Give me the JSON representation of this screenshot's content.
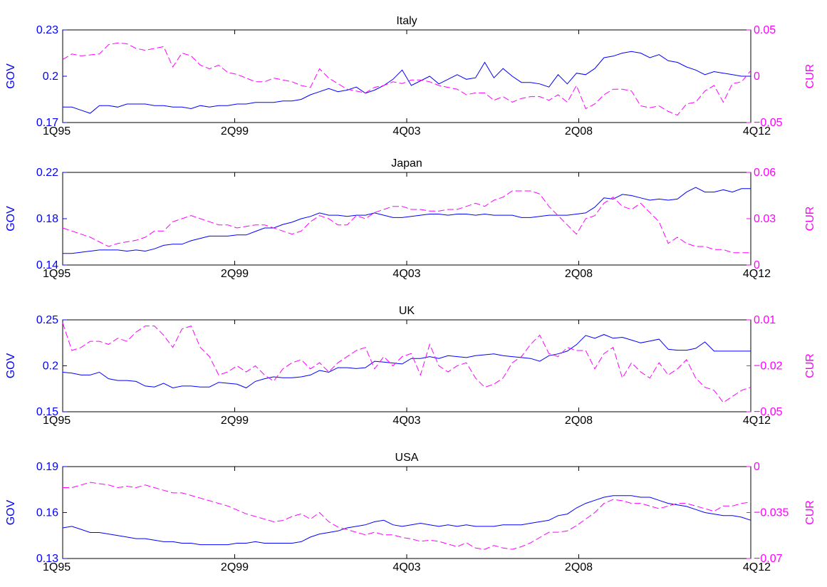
{
  "figure": {
    "x_tick_labels": [
      "1Q95",
      "2Q99",
      "4Q03",
      "2Q08",
      "4Q12"
    ],
    "left_axis_label": "GOV",
    "right_axis_label": "CUR",
    "left_color": "#0000ff",
    "right_color": "#ff00ff"
  },
  "chart_data": [
    {
      "type": "line",
      "title": "Italy",
      "ylabel": "GOV",
      "ylabel_right": "CUR",
      "ylim": [
        0.17,
        0.23
      ],
      "ylim_right": [
        -0.05,
        0.05
      ],
      "yticks": [
        "0.17",
        "0.2",
        "0.23"
      ],
      "yticks_right": [
        "−0.05",
        "0",
        "0.05"
      ],
      "series": [
        {
          "name": "GOV",
          "axis": "left",
          "style": "solid",
          "values": [
            0.18,
            0.18,
            0.178,
            0.176,
            0.181,
            0.181,
            0.18,
            0.182,
            0.182,
            0.182,
            0.181,
            0.181,
            0.18,
            0.18,
            0.179,
            0.181,
            0.18,
            0.181,
            0.181,
            0.182,
            0.182,
            0.183,
            0.183,
            0.183,
            0.184,
            0.184,
            0.185,
            0.188,
            0.19,
            0.192,
            0.19,
            0.191,
            0.193,
            0.189,
            0.191,
            0.194,
            0.198,
            0.204,
            0.194,
            0.197,
            0.2,
            0.195,
            0.198,
            0.201,
            0.198,
            0.199,
            0.209,
            0.199,
            0.205,
            0.2,
            0.196,
            0.196,
            0.195,
            0.193,
            0.201,
            0.195,
            0.202,
            0.201,
            0.205,
            0.212,
            0.213,
            0.215,
            0.216,
            0.215,
            0.212,
            0.214,
            0.21,
            0.209,
            0.206,
            0.204,
            0.201,
            0.203,
            0.202,
            0.201,
            0.2,
            0.2
          ]
        },
        {
          "name": "CUR",
          "axis": "right",
          "style": "dashed",
          "values": [
            0.018,
            0.024,
            0.022,
            0.023,
            0.024,
            0.034,
            0.036,
            0.035,
            0.03,
            0.028,
            0.03,
            0.032,
            0.01,
            0.025,
            0.022,
            0.012,
            0.008,
            0.012,
            0.004,
            0.002,
            -0.002,
            -0.006,
            -0.006,
            -0.002,
            -0.004,
            -0.006,
            -0.01,
            -0.012,
            0.008,
            -0.002,
            -0.008,
            -0.014,
            -0.016,
            -0.018,
            -0.012,
            -0.01,
            -0.006,
            -0.008,
            -0.004,
            -0.004,
            -0.006,
            -0.01,
            -0.012,
            -0.014,
            -0.02,
            -0.018,
            -0.018,
            -0.026,
            -0.022,
            -0.028,
            -0.024,
            -0.022,
            -0.022,
            -0.026,
            -0.02,
            -0.028,
            -0.01,
            -0.035,
            -0.03,
            -0.02,
            -0.014,
            -0.014,
            -0.016,
            -0.032,
            -0.034,
            -0.032,
            -0.038,
            -0.042,
            -0.03,
            -0.028,
            -0.016,
            -0.01,
            -0.028,
            -0.008,
            -0.006,
            0.006
          ]
        }
      ]
    },
    {
      "type": "line",
      "title": "Japan",
      "ylabel": "GOV",
      "ylabel_right": "CUR",
      "ylim": [
        0.14,
        0.22
      ],
      "ylim_right": [
        0,
        0.06
      ],
      "yticks": [
        "0.14",
        "0.18",
        "0.22"
      ],
      "yticks_right": [
        "0",
        "0.03",
        "0.06"
      ],
      "series": [
        {
          "name": "GOV",
          "axis": "left",
          "style": "solid",
          "values": [
            0.15,
            0.15,
            0.151,
            0.152,
            0.153,
            0.153,
            0.153,
            0.152,
            0.153,
            0.152,
            0.154,
            0.157,
            0.158,
            0.158,
            0.161,
            0.163,
            0.165,
            0.165,
            0.165,
            0.166,
            0.166,
            0.169,
            0.172,
            0.172,
            0.175,
            0.177,
            0.18,
            0.182,
            0.185,
            0.183,
            0.183,
            0.182,
            0.183,
            0.183,
            0.185,
            0.183,
            0.181,
            0.181,
            0.182,
            0.183,
            0.184,
            0.184,
            0.183,
            0.184,
            0.184,
            0.183,
            0.184,
            0.183,
            0.183,
            0.183,
            0.181,
            0.181,
            0.182,
            0.183,
            0.183,
            0.183,
            0.184,
            0.185,
            0.19,
            0.198,
            0.197,
            0.201,
            0.2,
            0.198,
            0.196,
            0.197,
            0.196,
            0.197,
            0.203,
            0.207,
            0.203,
            0.203,
            0.205,
            0.203,
            0.206,
            0.206
          ]
        },
        {
          "name": "CUR",
          "axis": "right",
          "style": "dashed",
          "values": [
            0.024,
            0.022,
            0.02,
            0.018,
            0.015,
            0.012,
            0.014,
            0.015,
            0.016,
            0.018,
            0.022,
            0.022,
            0.028,
            0.03,
            0.032,
            0.03,
            0.028,
            0.026,
            0.026,
            0.024,
            0.025,
            0.026,
            0.026,
            0.024,
            0.022,
            0.02,
            0.022,
            0.028,
            0.032,
            0.03,
            0.026,
            0.026,
            0.032,
            0.03,
            0.034,
            0.036,
            0.038,
            0.038,
            0.036,
            0.036,
            0.035,
            0.035,
            0.036,
            0.036,
            0.038,
            0.04,
            0.038,
            0.042,
            0.044,
            0.048,
            0.048,
            0.048,
            0.046,
            0.038,
            0.032,
            0.026,
            0.02,
            0.03,
            0.032,
            0.04,
            0.044,
            0.038,
            0.036,
            0.04,
            0.034,
            0.028,
            0.014,
            0.018,
            0.014,
            0.012,
            0.012,
            0.01,
            0.01,
            0.008,
            0.008,
            0.008
          ]
        }
      ]
    },
    {
      "type": "line",
      "title": "UK",
      "ylabel": "GOV",
      "ylabel_right": "CUR",
      "ylim": [
        0.15,
        0.25
      ],
      "ylim_right": [
        -0.05,
        0.01
      ],
      "yticks": [
        "0.15",
        "0.2",
        "0.25"
      ],
      "yticks_right": [
        "−0.05",
        "−0.02",
        "0.01"
      ],
      "series": [
        {
          "name": "GOV",
          "axis": "left",
          "style": "solid",
          "values": [
            0.193,
            0.192,
            0.19,
            0.19,
            0.193,
            0.186,
            0.184,
            0.184,
            0.183,
            0.178,
            0.177,
            0.181,
            0.176,
            0.178,
            0.178,
            0.177,
            0.177,
            0.182,
            0.181,
            0.18,
            0.176,
            0.183,
            0.186,
            0.188,
            0.187,
            0.187,
            0.188,
            0.19,
            0.195,
            0.193,
            0.198,
            0.198,
            0.197,
            0.198,
            0.205,
            0.204,
            0.203,
            0.202,
            0.208,
            0.208,
            0.21,
            0.208,
            0.211,
            0.21,
            0.209,
            0.211,
            0.212,
            0.213,
            0.211,
            0.21,
            0.209,
            0.208,
            0.205,
            0.211,
            0.213,
            0.216,
            0.223,
            0.233,
            0.23,
            0.234,
            0.23,
            0.231,
            0.228,
            0.225,
            0.227,
            0.229,
            0.218,
            0.217,
            0.217,
            0.219,
            0.226,
            0.216,
            0.216,
            0.216,
            0.216,
            0.216
          ]
        },
        {
          "name": "CUR",
          "axis": "right",
          "style": "dashed",
          "values": [
            0.008,
            -0.01,
            -0.008,
            -0.004,
            -0.004,
            -0.006,
            -0.002,
            -0.004,
            0.002,
            0.006,
            0.006,
            0.0,
            -0.008,
            0.004,
            0.006,
            -0.008,
            -0.014,
            -0.026,
            -0.024,
            -0.02,
            -0.024,
            -0.02,
            -0.026,
            -0.03,
            -0.022,
            -0.018,
            -0.016,
            -0.022,
            -0.018,
            -0.024,
            -0.018,
            -0.014,
            -0.01,
            -0.008,
            -0.022,
            -0.014,
            -0.02,
            -0.014,
            -0.012,
            -0.026,
            -0.006,
            -0.02,
            -0.024,
            -0.02,
            -0.018,
            -0.028,
            -0.034,
            -0.032,
            -0.028,
            -0.018,
            -0.014,
            -0.006,
            0.0,
            -0.012,
            -0.014,
            -0.008,
            -0.01,
            -0.01,
            -0.022,
            -0.012,
            -0.008,
            -0.028,
            -0.018,
            -0.024,
            -0.028,
            -0.018,
            -0.026,
            -0.022,
            -0.016,
            -0.028,
            -0.034,
            -0.036,
            -0.044,
            -0.04,
            -0.036,
            -0.034
          ]
        }
      ]
    },
    {
      "type": "line",
      "title": "USA",
      "ylabel": "GOV",
      "ylabel_right": "CUR",
      "ylim": [
        0.13,
        0.19
      ],
      "ylim_right": [
        -0.07,
        0
      ],
      "yticks": [
        "0.13",
        "0.16",
        "0.19"
      ],
      "yticks_right": [
        "−0.07",
        "−0.035",
        "0"
      ],
      "series": [
        {
          "name": "GOV",
          "axis": "left",
          "style": "solid",
          "values": [
            0.15,
            0.151,
            0.149,
            0.147,
            0.147,
            0.146,
            0.145,
            0.144,
            0.143,
            0.143,
            0.142,
            0.141,
            0.141,
            0.14,
            0.14,
            0.139,
            0.139,
            0.139,
            0.139,
            0.14,
            0.14,
            0.141,
            0.14,
            0.14,
            0.14,
            0.14,
            0.141,
            0.144,
            0.146,
            0.147,
            0.148,
            0.15,
            0.151,
            0.152,
            0.154,
            0.155,
            0.152,
            0.151,
            0.152,
            0.153,
            0.152,
            0.151,
            0.152,
            0.151,
            0.152,
            0.151,
            0.151,
            0.151,
            0.152,
            0.152,
            0.152,
            0.153,
            0.154,
            0.155,
            0.158,
            0.159,
            0.163,
            0.166,
            0.168,
            0.17,
            0.171,
            0.171,
            0.171,
            0.17,
            0.17,
            0.168,
            0.166,
            0.165,
            0.164,
            0.162,
            0.16,
            0.159,
            0.158,
            0.158,
            0.157,
            0.155
          ]
        },
        {
          "name": "CUR",
          "axis": "right",
          "style": "dashed",
          "values": [
            -0.016,
            -0.016,
            -0.014,
            -0.012,
            -0.013,
            -0.014,
            -0.016,
            -0.015,
            -0.016,
            -0.014,
            -0.016,
            -0.018,
            -0.02,
            -0.02,
            -0.022,
            -0.024,
            -0.026,
            -0.028,
            -0.03,
            -0.033,
            -0.036,
            -0.038,
            -0.04,
            -0.042,
            -0.041,
            -0.038,
            -0.036,
            -0.04,
            -0.035,
            -0.042,
            -0.046,
            -0.048,
            -0.05,
            -0.052,
            -0.05,
            -0.052,
            -0.052,
            -0.054,
            -0.055,
            -0.057,
            -0.056,
            -0.057,
            -0.059,
            -0.061,
            -0.058,
            -0.062,
            -0.063,
            -0.06,
            -0.062,
            -0.063,
            -0.061,
            -0.058,
            -0.054,
            -0.05,
            -0.05,
            -0.049,
            -0.045,
            -0.04,
            -0.035,
            -0.028,
            -0.025,
            -0.026,
            -0.028,
            -0.028,
            -0.03,
            -0.032,
            -0.03,
            -0.028,
            -0.028,
            -0.03,
            -0.032,
            -0.034,
            -0.03,
            -0.03,
            -0.028,
            -0.027
          ]
        }
      ]
    }
  ]
}
